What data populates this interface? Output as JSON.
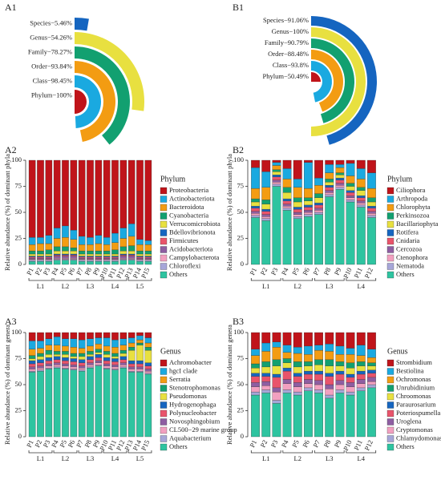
{
  "chart_data": [
    {
      "type": "radial_bar",
      "panel": "A1",
      "value_labels": [
        "Species−5.46%",
        "Genus−54.26%",
        "Family−78.27%",
        "Order−93.84%",
        "Class−98.45%",
        "Phylum−100%"
      ],
      "values": [
        5.46,
        54.26,
        78.27,
        93.84,
        98.45,
        100
      ],
      "colors": [
        "#1565c0",
        "#e8e040",
        "#12a070",
        "#f39c12",
        "#1aa9e0",
        "#c0141a"
      ],
      "xlim": [
        0,
        100
      ]
    },
    {
      "type": "radial_bar",
      "panel": "B1",
      "value_labels": [
        "Species−91.06%",
        "Genus−100%",
        "Family−90.79%",
        "Order−88.48%",
        "Class−93.8%",
        "Phylum−50.49%"
      ],
      "values": [
        91.06,
        100,
        90.79,
        88.48,
        93.8,
        50.49
      ],
      "colors": [
        "#1565c0",
        "#e8e040",
        "#12a070",
        "#f39c12",
        "#1aa9e0",
        "#c0141a"
      ],
      "xlim": [
        0,
        100
      ]
    },
    {
      "type": "stacked_bar",
      "panel": "A2",
      "y_label": "Relative abundance (%) of dominant phyla",
      "legend_title": "Phylum",
      "categories": [
        "P1",
        "P2",
        "P3",
        "P4",
        "P5",
        "P6",
        "P7",
        "P8",
        "P9",
        "P10",
        "P11",
        "P12",
        "P13",
        "P14",
        "P15"
      ],
      "groups": [
        "L1",
        "L2",
        "L3",
        "L4",
        "L5"
      ],
      "ylim": [
        0,
        100
      ],
      "yticks": [
        0,
        25,
        50,
        75,
        100
      ],
      "series": [
        {
          "name": "Proteobacteria",
          "color": "#c0141a",
          "values": [
            74,
            74,
            72,
            65,
            63,
            67,
            73,
            74,
            72,
            74,
            70,
            65,
            61,
            76,
            77
          ]
        },
        {
          "name": "Actinobacteriota",
          "color": "#1aa9e0",
          "values": [
            7,
            6,
            8,
            10,
            11,
            9,
            8,
            7,
            8,
            7,
            9,
            10,
            12,
            5,
            4
          ]
        },
        {
          "name": "Bacteroidota",
          "color": "#f39c12",
          "values": [
            6,
            7,
            6,
            8,
            9,
            8,
            6,
            6,
            7,
            6,
            7,
            8,
            9,
            6,
            6
          ]
        },
        {
          "name": "Cyanobacteria",
          "color": "#12a070",
          "values": [
            3,
            3,
            4,
            4,
            4,
            3,
            3,
            3,
            3,
            3,
            4,
            4,
            5,
            3,
            3
          ]
        },
        {
          "name": "Verrucomicrobiota",
          "color": "#e8e040",
          "values": [
            2,
            2,
            2,
            3,
            3,
            3,
            2,
            2,
            2,
            2,
            2,
            3,
            3,
            2,
            2
          ]
        },
        {
          "name": "Bdellovibrionota",
          "color": "#1565c0",
          "values": [
            1,
            1,
            1,
            1,
            1,
            1,
            1,
            1,
            1,
            1,
            1,
            1,
            1,
            1,
            1
          ]
        },
        {
          "name": "Firmicutes",
          "color": "#e9546b",
          "values": [
            1,
            1,
            1,
            1,
            1,
            1,
            1,
            1,
            1,
            1,
            1,
            1,
            1,
            1,
            1
          ]
        },
        {
          "name": "Acidobacteriota",
          "color": "#8e5ea2",
          "values": [
            1,
            1,
            1,
            2,
            2,
            2,
            1,
            1,
            1,
            1,
            1,
            2,
            2,
            1,
            1
          ]
        },
        {
          "name": "Campylobacterota",
          "color": "#f2a0c0",
          "values": [
            1,
            1,
            1,
            1,
            1,
            1,
            1,
            1,
            1,
            1,
            1,
            1,
            1,
            1,
            1
          ]
        },
        {
          "name": "Chloroflexi",
          "color": "#a6a6d8",
          "values": [
            1,
            1,
            1,
            1,
            1,
            1,
            1,
            1,
            1,
            1,
            1,
            1,
            1,
            1,
            1
          ]
        },
        {
          "name": "Others",
          "color": "#2ec4a0",
          "values": [
            3,
            3,
            3,
            4,
            4,
            4,
            3,
            3,
            3,
            3,
            3,
            4,
            4,
            3,
            3
          ]
        }
      ]
    },
    {
      "type": "stacked_bar",
      "panel": "B2",
      "y_label": "Relative abundance (%) of dominant phyla",
      "legend_title": "Phylum",
      "categories": [
        "P1",
        "P2",
        "P3",
        "P4",
        "P5",
        "P6",
        "P7",
        "P8",
        "P9",
        "P10",
        "P11",
        "P12"
      ],
      "groups": [
        "L1",
        "L2",
        "L3",
        "L4"
      ],
      "ylim": [
        0,
        100
      ],
      "yticks": [
        0,
        25,
        50,
        75,
        100
      ],
      "series": [
        {
          "name": "Ciliophora",
          "color": "#c0141a",
          "values": [
            7,
            11,
            2,
            8,
            18,
            2,
            17,
            4,
            4,
            3,
            8,
            12
          ]
        },
        {
          "name": "Arthropoda",
          "color": "#1aa9e0",
          "values": [
            20,
            15,
            3,
            10,
            8,
            25,
            7,
            8,
            3,
            12,
            10,
            15
          ]
        },
        {
          "name": "Chlorophyta",
          "color": "#f39c12",
          "values": [
            10,
            12,
            4,
            8,
            10,
            9,
            8,
            6,
            5,
            7,
            8,
            9
          ]
        },
        {
          "name": "Perkinsozoa",
          "color": "#12a070",
          "values": [
            3,
            4,
            2,
            5,
            4,
            3,
            4,
            3,
            2,
            3,
            3,
            4
          ]
        },
        {
          "name": "Bacillariophyta",
          "color": "#e8e040",
          "values": [
            4,
            5,
            3,
            6,
            5,
            4,
            5,
            3,
            3,
            4,
            5,
            4
          ]
        },
        {
          "name": "Rotifera",
          "color": "#1565c0",
          "values": [
            2,
            2,
            2,
            2,
            2,
            2,
            2,
            2,
            2,
            2,
            2,
            2
          ]
        },
        {
          "name": "Cnidaria",
          "color": "#e9546b",
          "values": [
            3,
            3,
            3,
            3,
            3,
            3,
            3,
            3,
            3,
            3,
            3,
            3
          ]
        },
        {
          "name": "Cercozoa",
          "color": "#8e5ea2",
          "values": [
            2,
            2,
            2,
            2,
            2,
            2,
            2,
            2,
            2,
            2,
            2,
            2
          ]
        },
        {
          "name": "Ctenophora",
          "color": "#f2a0c0",
          "values": [
            2,
            2,
            2,
            2,
            2,
            2,
            2,
            2,
            2,
            2,
            2,
            2
          ]
        },
        {
          "name": "Nematoda",
          "color": "#a6a6d8",
          "values": [
            2,
            2,
            2,
            2,
            2,
            2,
            2,
            2,
            2,
            2,
            2,
            2
          ]
        },
        {
          "name": "Others",
          "color": "#2ec4a0",
          "values": [
            45,
            42,
            75,
            52,
            44,
            46,
            48,
            65,
            72,
            60,
            55,
            45
          ]
        }
      ]
    },
    {
      "type": "stacked_bar",
      "panel": "A3",
      "y_label": "Relative abundance (%) of dominant genera",
      "legend_title": "Genus",
      "categories": [
        "P1",
        "P2",
        "P3",
        "P4",
        "P5",
        "P6",
        "P7",
        "P8",
        "P9",
        "P10",
        "P11",
        "P12",
        "P13",
        "P14",
        "P15"
      ],
      "groups": [
        "L1",
        "L2",
        "L3",
        "L4",
        "L5"
      ],
      "ylim": [
        0,
        100
      ],
      "yticks": [
        0,
        25,
        50,
        75,
        100
      ],
      "series": [
        {
          "name": "Achromobacter",
          "color": "#c0141a",
          "values": [
            8,
            8,
            6,
            4,
            6,
            6,
            7,
            6,
            5,
            5,
            7,
            6,
            5,
            3,
            5
          ]
        },
        {
          "name": "hgcI clade",
          "color": "#1aa9e0",
          "values": [
            8,
            7,
            6,
            8,
            7,
            8,
            8,
            7,
            6,
            8,
            7,
            6,
            5,
            4,
            5
          ]
        },
        {
          "name": "Serratia",
          "color": "#f39c12",
          "values": [
            6,
            5,
            5,
            6,
            5,
            6,
            5,
            5,
            5,
            5,
            6,
            5,
            4,
            3,
            4
          ]
        },
        {
          "name": "Stenotrophomonas",
          "color": "#12a070",
          "values": [
            3,
            3,
            4,
            3,
            3,
            3,
            3,
            3,
            3,
            3,
            3,
            3,
            3,
            2,
            3
          ]
        },
        {
          "name": "Pseudomonas",
          "color": "#e8e040",
          "values": [
            2,
            3,
            3,
            2,
            3,
            2,
            3,
            2,
            2,
            3,
            2,
            3,
            10,
            15,
            12
          ]
        },
        {
          "name": "Hydrogenophaga",
          "color": "#1565c0",
          "values": [
            3,
            3,
            3,
            3,
            3,
            3,
            3,
            3,
            3,
            3,
            3,
            3,
            3,
            3,
            3
          ]
        },
        {
          "name": "Polynucleobacter",
          "color": "#e9546b",
          "values": [
            3,
            3,
            3,
            3,
            3,
            3,
            3,
            3,
            3,
            3,
            3,
            3,
            3,
            3,
            3
          ]
        },
        {
          "name": "Novosphingobium",
          "color": "#8e5ea2",
          "values": [
            2,
            2,
            2,
            2,
            2,
            2,
            2,
            2,
            2,
            2,
            2,
            2,
            2,
            2,
            2
          ]
        },
        {
          "name": "CL500−29 marine group",
          "color": "#f2a0c0",
          "values": [
            2,
            2,
            2,
            2,
            2,
            2,
            2,
            2,
            2,
            2,
            2,
            2,
            2,
            2,
            2
          ]
        },
        {
          "name": "Aquabacterium",
          "color": "#a6a6d8",
          "values": [
            1,
            1,
            1,
            1,
            1,
            1,
            1,
            1,
            1,
            1,
            1,
            1,
            1,
            1,
            1
          ]
        },
        {
          "name": "Others",
          "color": "#2ec4a0",
          "values": [
            62,
            63,
            65,
            66,
            65,
            64,
            63,
            66,
            68,
            65,
            64,
            66,
            62,
            62,
            60
          ]
        }
      ]
    },
    {
      "type": "stacked_bar",
      "panel": "B3",
      "y_label": "Relative abundance (%) of dominant genera",
      "legend_title": "Genus",
      "categories": [
        "P1",
        "P2",
        "P3",
        "P4",
        "P5",
        "P6",
        "P7",
        "P8",
        "P9",
        "P10",
        "P11",
        "P12"
      ],
      "groups": [
        "L1",
        "L2",
        "L3",
        "L4"
      ],
      "ylim": [
        0,
        100
      ],
      "yticks": [
        0,
        25,
        50,
        75,
        100
      ],
      "series": [
        {
          "name": "Strombidium",
          "color": "#c0141a",
          "values": [
            16,
            10,
            9,
            12,
            14,
            13,
            12,
            11,
            13,
            15,
            12,
            16
          ]
        },
        {
          "name": "Bestiolina",
          "color": "#1aa9e0",
          "values": [
            6,
            8,
            5,
            7,
            6,
            8,
            5,
            7,
            8,
            6,
            10,
            8
          ]
        },
        {
          "name": "Ochromonas",
          "color": "#f39c12",
          "values": [
            8,
            10,
            12,
            6,
            8,
            7,
            9,
            8,
            7,
            8,
            6,
            5
          ]
        },
        {
          "name": "Unrubidinium",
          "color": "#12a070",
          "values": [
            4,
            5,
            6,
            4,
            5,
            4,
            5,
            6,
            4,
            5,
            4,
            3
          ]
        },
        {
          "name": "Chroomonas",
          "color": "#e8e040",
          "values": [
            5,
            6,
            8,
            5,
            6,
            5,
            6,
            7,
            5,
            6,
            5,
            4
          ]
        },
        {
          "name": "Paraurosarium",
          "color": "#1565c0",
          "values": [
            3,
            3,
            3,
            3,
            3,
            3,
            3,
            3,
            3,
            3,
            3,
            3
          ]
        },
        {
          "name": "Poteriospumella",
          "color": "#e9546b",
          "values": [
            6,
            5,
            10,
            8,
            6,
            5,
            6,
            8,
            6,
            5,
            5,
            4
          ]
        },
        {
          "name": "Uroglena",
          "color": "#8e5ea2",
          "values": [
            4,
            4,
            4,
            4,
            4,
            4,
            4,
            4,
            4,
            4,
            4,
            4
          ]
        },
        {
          "name": "Cryptomonas",
          "color": "#f2a0c0",
          "values": [
            5,
            4,
            8,
            6,
            5,
            4,
            5,
            6,
            5,
            5,
            4,
            3
          ]
        },
        {
          "name": "Chlamydomonas",
          "color": "#a6a6d8",
          "values": [
            3,
            3,
            3,
            3,
            3,
            3,
            3,
            3,
            3,
            3,
            3,
            3
          ]
        },
        {
          "name": "Others",
          "color": "#2ec4a0",
          "values": [
            40,
            42,
            32,
            42,
            40,
            44,
            42,
            37,
            42,
            40,
            44,
            47
          ]
        }
      ]
    }
  ]
}
